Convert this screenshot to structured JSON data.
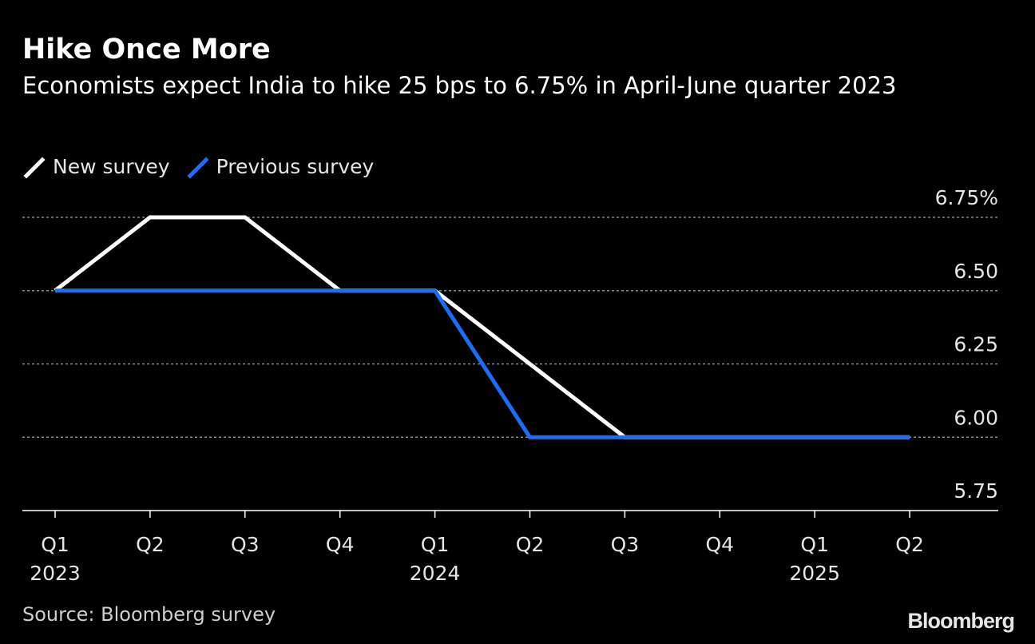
{
  "chart_data": {
    "type": "line",
    "title": "Hike Once More",
    "subtitle": "Economists expect India to hike 25 bps to 6.75% in April-June quarter 2023",
    "x_ticks": [
      {
        "label": "Q1",
        "year": "2023"
      },
      {
        "label": "Q2",
        "year": ""
      },
      {
        "label": "Q3",
        "year": ""
      },
      {
        "label": "Q4",
        "year": ""
      },
      {
        "label": "Q1",
        "year": "2024"
      },
      {
        "label": "Q2",
        "year": ""
      },
      {
        "label": "Q3",
        "year": ""
      },
      {
        "label": "Q4",
        "year": ""
      },
      {
        "label": "Q1",
        "year": "2025"
      },
      {
        "label": "Q2",
        "year": ""
      }
    ],
    "ylim": [
      5.75,
      6.75
    ],
    "y_ticks": [
      {
        "value": 6.75,
        "label": "6.75%"
      },
      {
        "value": 6.5,
        "label": "6.50"
      },
      {
        "value": 6.25,
        "label": "6.25"
      },
      {
        "value": 6.0,
        "label": "6.00"
      },
      {
        "value": 5.75,
        "label": "5.75"
      }
    ],
    "grid": true,
    "legend_position": "top-left",
    "series": [
      {
        "name": "New survey",
        "color": "#ffffff",
        "values": [
          6.5,
          6.75,
          6.75,
          6.5,
          6.5,
          6.25,
          6.0,
          6.0,
          6.0,
          6.0
        ]
      },
      {
        "name": "Previous survey",
        "color": "#1a6ef5",
        "values": [
          6.5,
          6.5,
          6.5,
          6.5,
          6.5,
          6.0,
          6.0,
          6.0,
          6.0,
          6.0
        ]
      }
    ],
    "source": "Source: Bloomberg survey"
  },
  "brand": "Bloomberg"
}
